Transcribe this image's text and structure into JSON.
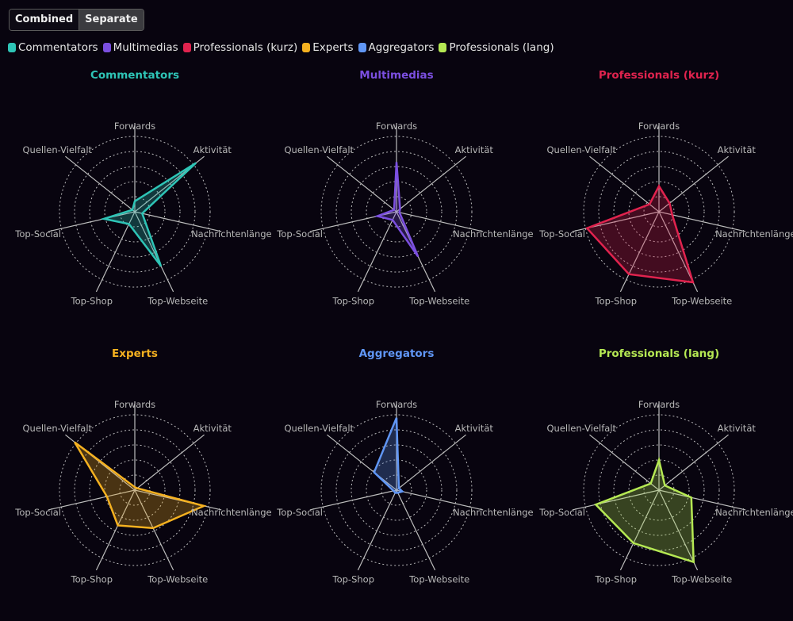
{
  "toggle": {
    "combined_label": "Combined",
    "separate_label": "Separate",
    "active": "Separate"
  },
  "chart_data": {
    "type": "radar",
    "axes": [
      "Forwards",
      "Aktivität",
      "Nachrichtenlänge",
      "Top-Webseite",
      "Top-Shop",
      "Top-Social",
      "Quellen-Vielfalt"
    ],
    "rlim": [
      0,
      5
    ],
    "grid": true,
    "legend_position": "top-left",
    "series": [
      {
        "name": "Commentators",
        "color": "#2ec4b6",
        "values": [
          0.7,
          5.2,
          0.5,
          4.0,
          0.9,
          2.1,
          0.2
        ]
      },
      {
        "name": "Multimedias",
        "color": "#7b4fe0",
        "values": [
          3.3,
          0.3,
          0.2,
          3.3,
          0.6,
          1.3,
          0.2
        ]
      },
      {
        "name": "Professionals (kurz)",
        "color": "#e0234e",
        "values": [
          1.7,
          0.9,
          0.9,
          5.2,
          4.6,
          4.9,
          0.8
        ]
      },
      {
        "name": "Experts",
        "color": "#f5b120",
        "values": [
          0.2,
          0.2,
          4.7,
          2.8,
          2.6,
          1.9,
          5.1
        ]
      },
      {
        "name": "Aggregators",
        "color": "#6096f5",
        "values": [
          4.8,
          0.2,
          0.4,
          0.2,
          0.2,
          0.2,
          1.9
        ]
      },
      {
        "name": "Professionals (lang)",
        "color": "#b5e853",
        "values": [
          2.0,
          0.5,
          2.2,
          5.3,
          3.9,
          4.3,
          0.7
        ]
      }
    ]
  }
}
